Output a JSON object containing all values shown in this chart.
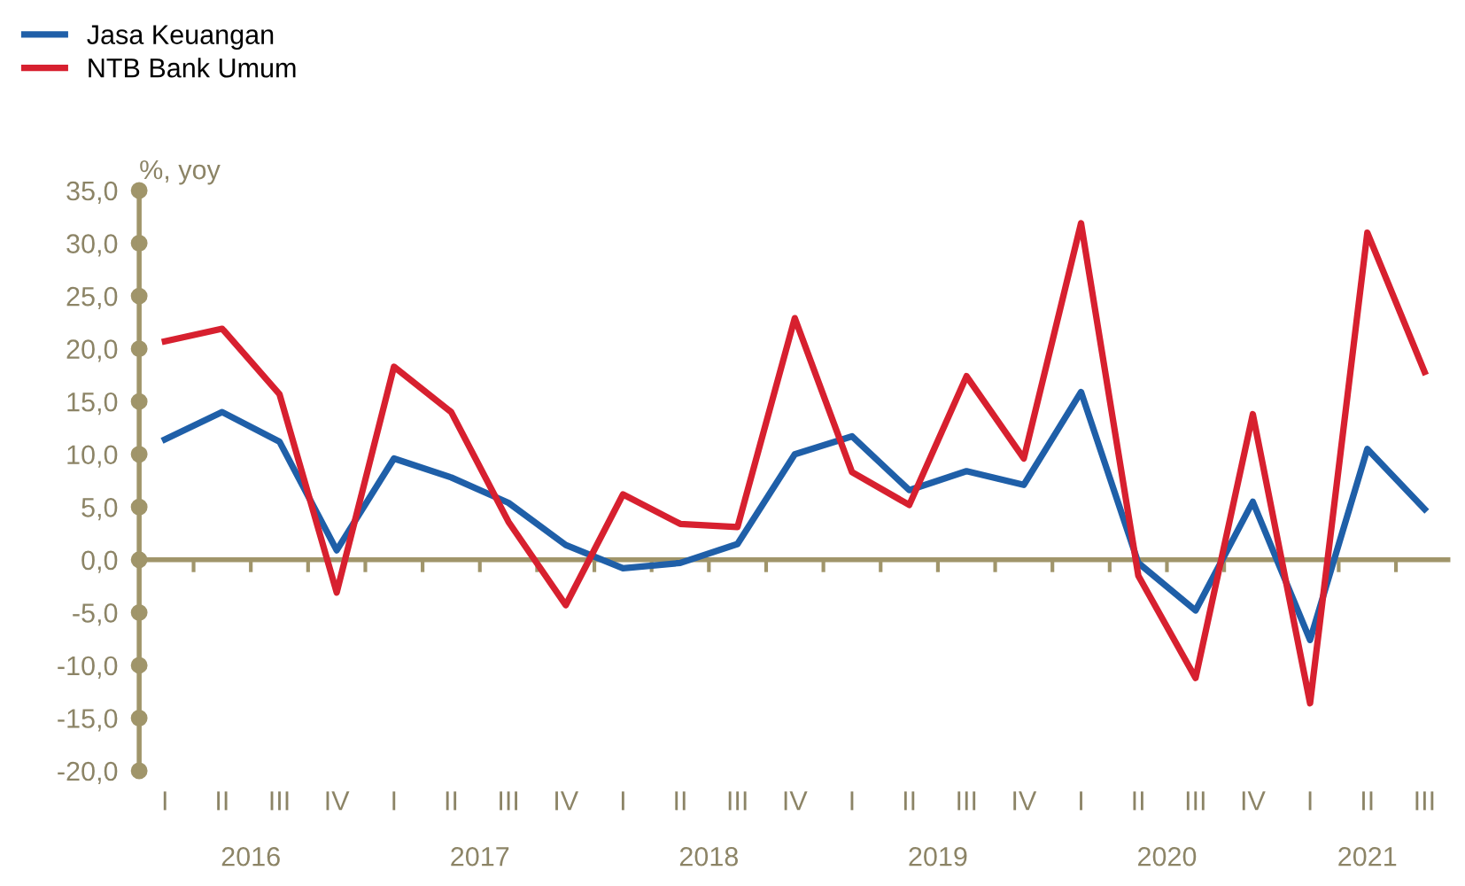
{
  "chart_data": {
    "type": "line",
    "ylabel": "%, yoy",
    "categories": [
      "I",
      "II",
      "III",
      "IV",
      "I",
      "II",
      "III",
      "IV",
      "I",
      "II",
      "III",
      "IV",
      "I",
      "II",
      "III",
      "IV",
      "I",
      "II",
      "III",
      "IV",
      "I",
      "II",
      "III"
    ],
    "annotations": [
      "2016",
      "2017",
      "2018",
      "2019",
      "2020",
      "2021"
    ],
    "series": [
      {
        "name": "Jasa Keuangan",
        "color": "#1f5fa8",
        "values": [
          11.4,
          14.0,
          11.2,
          0.9,
          9.6,
          7.8,
          5.4,
          1.4,
          -0.8,
          -0.3,
          1.5,
          10.0,
          11.7,
          6.6,
          8.4,
          7.1,
          15.9,
          -0.3,
          -4.8,
          5.5,
          -7.6,
          10.5,
          4.8
        ]
      },
      {
        "name": "NTB Bank Umum",
        "color": "#d7202f",
        "values": [
          20.7,
          21.9,
          15.7,
          -3.1,
          18.3,
          14.0,
          3.6,
          -4.3,
          6.2,
          3.4,
          3.1,
          22.9,
          8.3,
          5.2,
          17.4,
          9.6,
          31.9,
          -1.5,
          -11.2,
          13.8,
          -13.6,
          31.0,
          17.8
        ]
      }
    ],
    "ylim": [
      -20,
      35
    ],
    "yticks": [
      {
        "value": -20,
        "label": "-20,0"
      },
      {
        "value": -15,
        "label": "-15,0"
      },
      {
        "value": -10,
        "label": "-10,0"
      },
      {
        "value": -5,
        "label": "-5,0"
      },
      {
        "value": 0,
        "label": "0,0"
      },
      {
        "value": 5,
        "label": "5,0"
      },
      {
        "value": 10,
        "label": "10,0"
      },
      {
        "value": 15,
        "label": "15,0"
      },
      {
        "value": 20,
        "label": "20,0"
      },
      {
        "value": 25,
        "label": "25,0"
      },
      {
        "value": 30,
        "label": "30,0"
      },
      {
        "value": 35,
        "label": "35,0"
      }
    ],
    "ref_lines": [
      {
        "axis": "y",
        "value": 0,
        "color": "#a0956a"
      }
    ],
    "grid": false,
    "legend": "top left",
    "marker": "none",
    "line_style": "solid"
  }
}
